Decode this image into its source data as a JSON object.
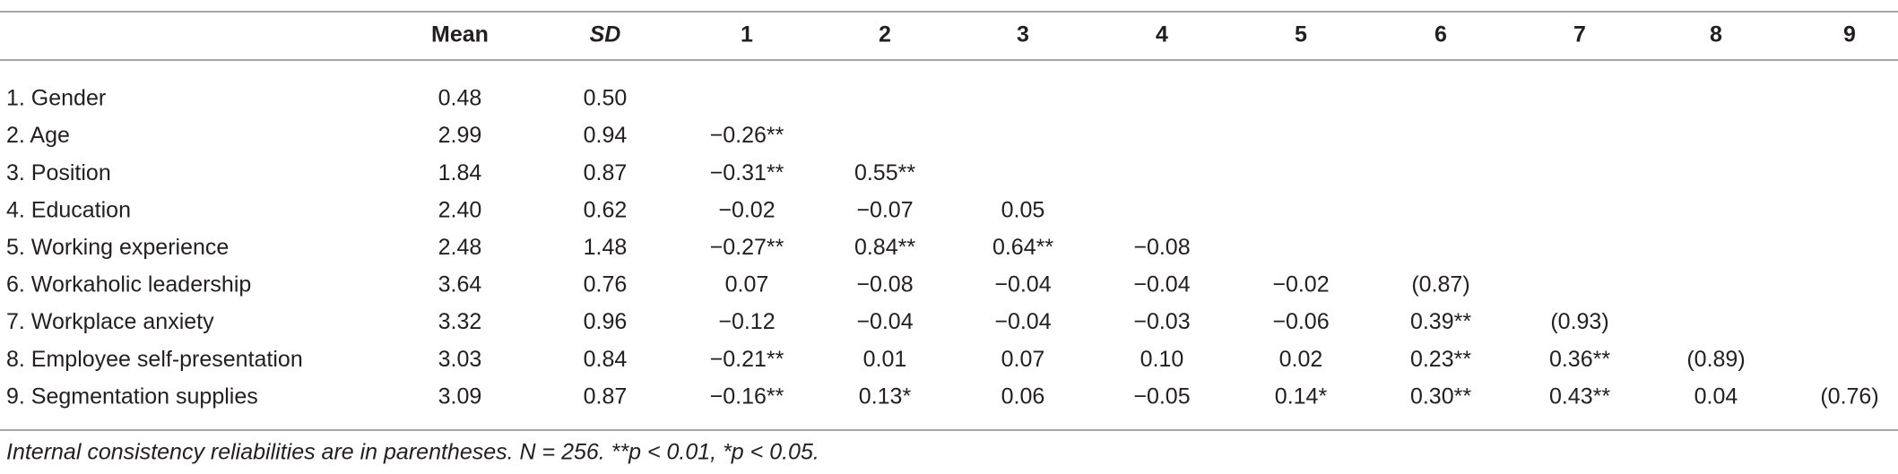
{
  "table": {
    "header": [
      "Mean",
      "SD",
      "1",
      "2",
      "3",
      "4",
      "5",
      "6",
      "7",
      "8",
      "9"
    ],
    "rows": [
      {
        "label": "1. Gender",
        "cells": [
          "0.48",
          "0.50"
        ]
      },
      {
        "label": "2. Age",
        "cells": [
          "2.99",
          "0.94",
          "−0.26**"
        ]
      },
      {
        "label": "3. Position",
        "cells": [
          "1.84",
          "0.87",
          "−0.31**",
          "0.55**"
        ]
      },
      {
        "label": "4. Education",
        "cells": [
          "2.40",
          "0.62",
          "−0.02",
          "−0.07",
          "0.05"
        ]
      },
      {
        "label": "5. Working experience",
        "cells": [
          "2.48",
          "1.48",
          "−0.27**",
          "0.84**",
          "0.64**",
          "−0.08"
        ]
      },
      {
        "label": "6. Workaholic leadership",
        "cells": [
          "3.64",
          "0.76",
          "0.07",
          "−0.08",
          "−0.04",
          "−0.04",
          "−0.02",
          "(0.87)"
        ]
      },
      {
        "label": "7. Workplace anxiety",
        "cells": [
          "3.32",
          "0.96",
          "−0.12",
          "−0.04",
          "−0.04",
          "−0.03",
          "−0.06",
          "0.39**",
          "(0.93)"
        ]
      },
      {
        "label": "8. Employee self-presentation",
        "cells": [
          "3.03",
          "0.84",
          "−0.21**",
          "0.01",
          "0.07",
          "0.10",
          "0.02",
          "0.23**",
          "0.36**",
          "(0.89)"
        ]
      },
      {
        "label": "9. Segmentation supplies",
        "cells": [
          "3.09",
          "0.87",
          "−0.16**",
          "0.13*",
          "0.06",
          "−0.05",
          "0.14*",
          "0.30**",
          "0.43**",
          "0.04",
          "(0.76)"
        ]
      }
    ],
    "footnote": "Internal consistency reliabilities are in parentheses. N = 256. **p < 0.01, *p < 0.05."
  }
}
